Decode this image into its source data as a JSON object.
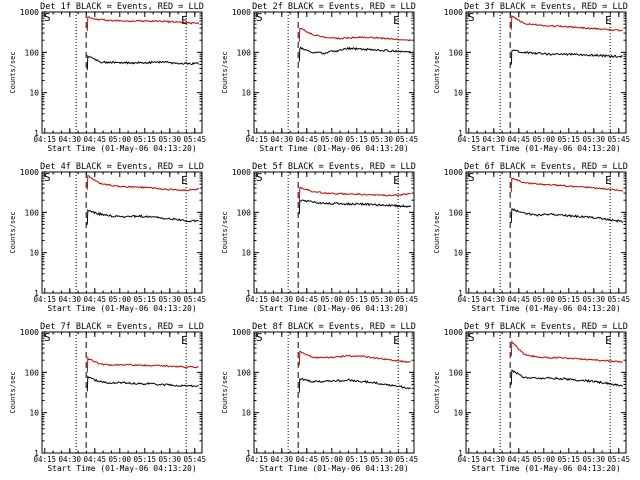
{
  "figure": {
    "background": "#ffffff",
    "events_color": "#000000",
    "lld_color": "#cc0000"
  },
  "chart_data": [
    {
      "type": "line",
      "panel": 1,
      "title": "Det 1f BLACK = Events, RED = LLD",
      "xlabel": "Start Time (01-May-06 04:13:20)",
      "ylabel": "Counts/sec",
      "x_ticks": [
        "04:15",
        "04:30",
        "04:45",
        "05:00",
        "05:15",
        "05:30",
        "05:45"
      ],
      "y_ticks": [
        "1",
        "10",
        "100",
        "1000"
      ],
      "ylim": [
        1,
        1000
      ],
      "ylog": true,
      "xlim_min": [
        0,
        96
      ],
      "markers": {
        "S": "S",
        "E": "E"
      },
      "lines_min": {
        "dotted": [
          20.5,
          86.5
        ],
        "dashed": 26.5
      },
      "series": [
        {
          "name": "Events",
          "start_min": 27.5,
          "values": [
            80,
            58,
            56,
            55,
            55,
            56,
            58,
            54,
            53,
            52
          ]
        },
        {
          "name": "LLD",
          "start_min": 27.5,
          "values": [
            750,
            640,
            610,
            600,
            600,
            590,
            590,
            570,
            540,
            520
          ]
        }
      ]
    },
    {
      "type": "line",
      "panel": 2,
      "title": "Det 2f BLACK = Events, RED = LLD",
      "xlabel": "Start Time (01-May-06 04:13:20)",
      "ylabel": "Counts/sec",
      "x_ticks": [
        "04:15",
        "04:30",
        "04:45",
        "05:00",
        "05:15",
        "05:30",
        "05:45"
      ],
      "y_ticks": [
        "1",
        "10",
        "100",
        "1000"
      ],
      "ylim": [
        1,
        1000
      ],
      "ylog": true,
      "xlim_min": [
        0,
        96
      ],
      "markers": {
        "S": "S",
        "E": "E"
      },
      "lines_min": {
        "dotted": [
          20.5,
          86.5
        ],
        "dashed": 26.5
      },
      "series": [
        {
          "name": "Events",
          "start_min": 27.5,
          "values": [
            130,
            100,
            95,
            110,
            125,
            120,
            115,
            110,
            105,
            100
          ]
        },
        {
          "name": "LLD",
          "start_min": 27.5,
          "values": [
            400,
            280,
            240,
            220,
            230,
            240,
            230,
            220,
            210,
            200
          ]
        }
      ]
    },
    {
      "type": "line",
      "panel": 3,
      "title": "Det 3f BLACK = Events, RED = LLD",
      "xlabel": "Start Time (01-May-06 04:13:20)",
      "ylabel": "Counts/sec",
      "x_ticks": [
        "04:15",
        "04:30",
        "04:45",
        "05:00",
        "05:15",
        "05:30",
        "05:45"
      ],
      "y_ticks": [
        "1",
        "10",
        "100",
        "1000"
      ],
      "ylim": [
        1,
        1000
      ],
      "ylog": true,
      "xlim_min": [
        0,
        96
      ],
      "markers": {
        "S": "S",
        "E": "E"
      },
      "lines_min": {
        "dotted": [
          20.5,
          86.5
        ],
        "dashed": 26.5
      },
      "series": [
        {
          "name": "Events",
          "start_min": 27.5,
          "values": [
            110,
            100,
            95,
            90,
            90,
            88,
            86,
            84,
            80,
            78
          ]
        },
        {
          "name": "LLD",
          "start_min": 27.5,
          "values": [
            800,
            520,
            480,
            450,
            440,
            420,
            400,
            380,
            360,
            340
          ]
        }
      ]
    },
    {
      "type": "line",
      "panel": 4,
      "title": "Det 4f BLACK = Events, RED = LLD",
      "xlabel": "Start Time (01-May-06 04:13:20)",
      "ylabel": "Counts/sec",
      "x_ticks": [
        "04:15",
        "04:30",
        "04:45",
        "05:00",
        "05:15",
        "05:30",
        "05:45"
      ],
      "y_ticks": [
        "1",
        "10",
        "100",
        "1000"
      ],
      "ylim": [
        1,
        1000
      ],
      "ylog": true,
      "xlim_min": [
        0,
        96
      ],
      "markers": {
        "S": "S",
        "E": "E"
      },
      "lines_min": {
        "dotted": [
          20.5,
          86.5
        ],
        "dashed": 26.5
      },
      "series": [
        {
          "name": "Events",
          "start_min": 27.5,
          "values": [
            110,
            90,
            80,
            78,
            80,
            78,
            72,
            68,
            62,
            60
          ]
        },
        {
          "name": "LLD",
          "start_min": 27.5,
          "values": [
            800,
            520,
            460,
            430,
            420,
            410,
            380,
            360,
            350,
            380
          ]
        }
      ]
    },
    {
      "type": "line",
      "panel": 5,
      "title": "Det 5f BLACK = Events, RED = LLD",
      "xlabel": "Start Time (01-May-06 04:13:20)",
      "ylabel": "Counts/sec",
      "x_ticks": [
        "04:15",
        "04:30",
        "04:45",
        "05:00",
        "05:15",
        "05:30",
        "05:45"
      ],
      "y_ticks": [
        "1",
        "10",
        "100",
        "1000"
      ],
      "ylim": [
        1,
        1000
      ],
      "ylog": true,
      "xlim_min": [
        0,
        96
      ],
      "markers": {
        "S": "S",
        "E": "E"
      },
      "lines_min": {
        "dotted": [
          20.5,
          86.5
        ],
        "dashed": 26.5
      },
      "series": [
        {
          "name": "Events",
          "start_min": 27.5,
          "values": [
            200,
            180,
            170,
            165,
            160,
            160,
            155,
            150,
            145,
            140
          ]
        },
        {
          "name": "LLD",
          "start_min": 27.5,
          "values": [
            420,
            330,
            300,
            290,
            285,
            280,
            270,
            260,
            270,
            290
          ]
        }
      ]
    },
    {
      "type": "line",
      "panel": 6,
      "title": "Det 6f BLACK = Events, RED = LLD",
      "xlabel": "Start Time (01-May-06 04:13:20)",
      "ylabel": "Counts/sec",
      "x_ticks": [
        "04:15",
        "04:30",
        "04:45",
        "05:00",
        "05:15",
        "05:30",
        "05:45"
      ],
      "y_ticks": [
        "1",
        "10",
        "100",
        "1000"
      ],
      "ylim": [
        1,
        1000
      ],
      "ylog": true,
      "xlim_min": [
        0,
        96
      ],
      "markers": {
        "S": "S",
        "E": "E"
      },
      "lines_min": {
        "dotted": [
          20.5,
          86.5
        ],
        "dashed": 26.5
      },
      "series": [
        {
          "name": "Events",
          "start_min": 27.5,
          "values": [
            120,
            95,
            85,
            90,
            85,
            80,
            78,
            72,
            65,
            58
          ]
        },
        {
          "name": "LLD",
          "start_min": 27.5,
          "values": [
            700,
            540,
            500,
            480,
            460,
            440,
            420,
            400,
            370,
            340
          ]
        }
      ]
    },
    {
      "type": "line",
      "panel": 7,
      "title": "Det 7f BLACK = Events, RED = LLD",
      "xlabel": "Start Time (01-May-06 04:13:20)",
      "ylabel": "Counts/sec",
      "x_ticks": [
        "04:15",
        "04:30",
        "04:45",
        "05:00",
        "05:15",
        "05:30",
        "05:45"
      ],
      "y_ticks": [
        "1",
        "10",
        "100",
        "1000"
      ],
      "ylim": [
        1,
        1000
      ],
      "ylog": true,
      "xlim_min": [
        0,
        96
      ],
      "markers": {
        "S": "S",
        "E": "E"
      },
      "lines_min": {
        "dotted": [
          20.5,
          86.5
        ],
        "dashed": 26.5
      },
      "series": [
        {
          "name": "Events",
          "start_min": 27.5,
          "values": [
            75,
            58,
            55,
            55,
            52,
            52,
            50,
            48,
            46,
            45
          ]
        },
        {
          "name": "LLD",
          "start_min": 27.5,
          "values": [
            220,
            160,
            150,
            155,
            150,
            148,
            145,
            140,
            135,
            135
          ]
        }
      ]
    },
    {
      "type": "line",
      "panel": 8,
      "title": "Det 8f BLACK = Events, RED = LLD",
      "xlabel": "Start Time (01-May-06 04:13:20)",
      "ylabel": "Counts/sec",
      "x_ticks": [
        "04:15",
        "04:30",
        "04:45",
        "05:00",
        "05:15",
        "05:30",
        "05:45"
      ],
      "y_ticks": [
        "1",
        "10",
        "100",
        "1000"
      ],
      "ylim": [
        1,
        1000
      ],
      "ylog": true,
      "xlim_min": [
        0,
        96
      ],
      "markers": {
        "S": "S",
        "E": "E"
      },
      "lines_min": {
        "dotted": [
          20.5,
          86.5
        ],
        "dashed": 26.5
      },
      "series": [
        {
          "name": "Events",
          "start_min": 27.5,
          "values": [
            70,
            58,
            60,
            62,
            65,
            60,
            55,
            50,
            45,
            40
          ]
        },
        {
          "name": "LLD",
          "start_min": 27.5,
          "values": [
            330,
            240,
            230,
            240,
            260,
            250,
            230,
            210,
            190,
            180
          ]
        }
      ]
    },
    {
      "type": "line",
      "panel": 9,
      "title": "Det 9f BLACK = Events, RED = LLD",
      "xlabel": "Start Time (01-May-06 04:13:20)",
      "ylabel": "Counts/sec",
      "x_ticks": [
        "04:15",
        "04:30",
        "04:45",
        "05:00",
        "05:15",
        "05:30",
        "05:45"
      ],
      "y_ticks": [
        "1",
        "10",
        "100",
        "1000"
      ],
      "ylim": [
        1,
        1000
      ],
      "ylog": true,
      "xlim_min": [
        0,
        96
      ],
      "markers": {
        "S": "S",
        "E": "E"
      },
      "lines_min": {
        "dotted": [
          20.5,
          86.5
        ],
        "dashed": 26.5
      },
      "series": [
        {
          "name": "Events",
          "start_min": 27.5,
          "values": [
            110,
            75,
            70,
            72,
            70,
            65,
            62,
            58,
            52,
            46
          ]
        },
        {
          "name": "LLD",
          "start_min": 27.5,
          "values": [
            560,
            280,
            240,
            230,
            230,
            220,
            210,
            200,
            190,
            180
          ]
        }
      ]
    }
  ]
}
